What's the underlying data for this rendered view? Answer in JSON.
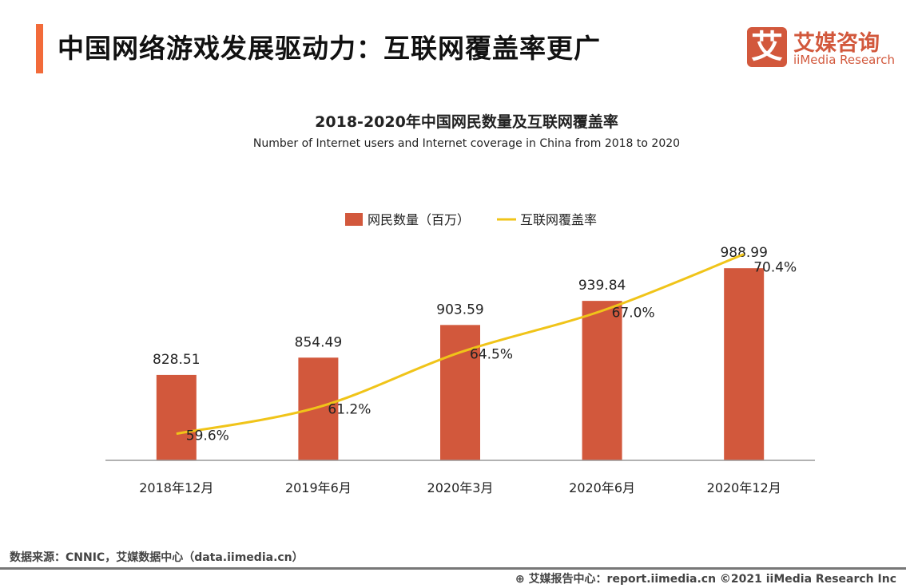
{
  "header": {
    "title": "中国网络游戏发展驱动力：互联网覆盖率更广"
  },
  "logo": {
    "mark": "艾",
    "cn": "艾媒咨询",
    "en": "iiMedia Research"
  },
  "chart_data": {
    "type": "bar+line",
    "title": "2018-2020年中国网民数量及互联网覆盖率",
    "subtitle": "Number of Internet users and Internet coverage in China from 2018 to 2020",
    "categories": [
      "2018年12月",
      "2019年6月",
      "2020年3月",
      "2020年6月",
      "2020年12月"
    ],
    "series": [
      {
        "name": "网民数量（百万）",
        "type": "bar",
        "values": [
          828.51,
          854.49,
          903.59,
          939.84,
          988.99
        ],
        "labels": [
          "828.51",
          "854.49",
          "903.59",
          "939.84",
          "988.99"
        ],
        "color": "#d2583c"
      },
      {
        "name": "互联网覆盖率",
        "type": "line",
        "values": [
          59.6,
          61.2,
          64.5,
          67.0,
          70.4
        ],
        "labels": [
          "59.6%",
          "61.2%",
          "64.5%",
          "67.0%",
          "70.4%"
        ],
        "color": "#f0c419"
      }
    ],
    "ylim": [
      700,
      1000
    ],
    "y2lim": [
      58,
      70
    ],
    "legend": "top",
    "grid": false
  },
  "footer": {
    "source": "数据来源：CNNIC，艾媒数据中心（data.iimedia.cn）",
    "credit": "艾媒报告中心：report.iimedia.cn   ©2021  iiMedia Research  Inc"
  }
}
